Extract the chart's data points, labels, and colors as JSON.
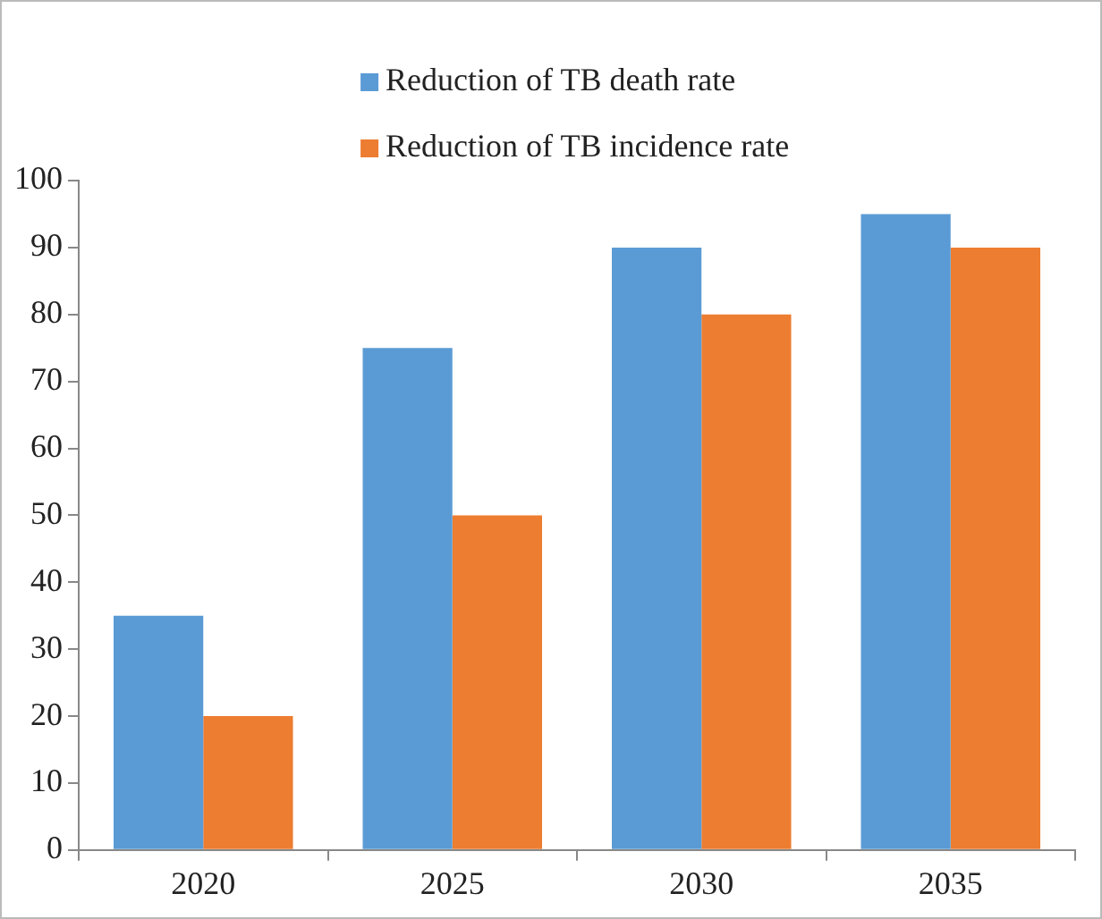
{
  "chart_data": {
    "type": "bar",
    "categories": [
      "2020",
      "2025",
      "2030",
      "2035"
    ],
    "series": [
      {
        "name": "Reduction of TB death rate",
        "color": "#5b9bd5",
        "values": [
          35,
          75,
          90,
          95
        ]
      },
      {
        "name": "Reduction of TB incidence rate",
        "color": "#ed7d31",
        "values": [
          20,
          50,
          80,
          90
        ]
      }
    ],
    "ylim": [
      0,
      100
    ],
    "yticks": [
      0,
      10,
      20,
      30,
      40,
      50,
      60,
      70,
      80,
      90,
      100
    ],
    "grid": false,
    "legend": "top"
  }
}
